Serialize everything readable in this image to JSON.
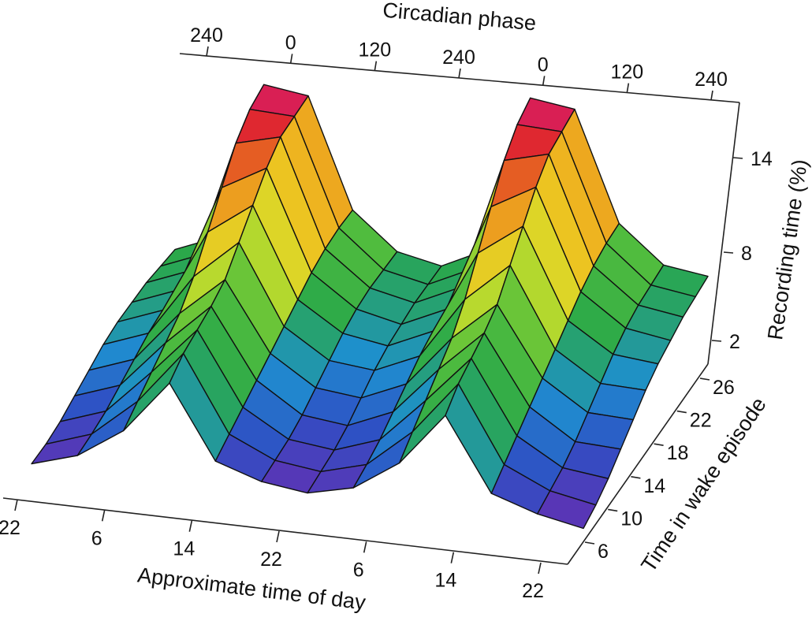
{
  "chart_data": {
    "type": "surface",
    "top_axis": {
      "title": "Circadian phase",
      "ticks": [
        "240",
        "0",
        "120",
        "240",
        "0",
        "120",
        "240"
      ]
    },
    "x_axis": {
      "title": "Approximate time of day",
      "ticks": [
        "22",
        "6",
        "14",
        "22",
        "6",
        "14",
        "22"
      ]
    },
    "y_axis": {
      "title": "Time in wake episode",
      "ticks": [
        "6",
        "10",
        "14",
        "18",
        "22",
        "26"
      ]
    },
    "z_axis": {
      "title": "Recording time (%)",
      "ticks": [
        "2",
        "8",
        "14"
      ],
      "range": [
        0,
        17
      ]
    },
    "colormap": [
      "#6b2bb0",
      "#2f4fc4",
      "#1e8fd0",
      "#2aa84a",
      "#5cc23a",
      "#d4e02a",
      "#f0c020",
      "#e8821e",
      "#e02a2a",
      "#d0108c"
    ],
    "wake_hours": [
      6,
      8,
      10,
      12,
      14,
      16,
      18,
      20,
      22,
      24,
      26
    ],
    "phase_columns": [
      "240",
      "",
      "0",
      "",
      "120",
      "",
      "240",
      "",
      "0",
      "",
      "120",
      "",
      "240"
    ],
    "values": [
      [
        0.6,
        1.5,
        3.5,
        7.0,
        2.2,
        1.2,
        0.8,
        1.5,
        3.5,
        7.0,
        2.2,
        1.2,
        0.6
      ],
      [
        1.0,
        2.0,
        4.5,
        8.0,
        3.0,
        1.6,
        1.2,
        2.0,
        4.5,
        8.0,
        3.0,
        1.6,
        1.0
      ],
      [
        1.6,
        2.6,
        5.5,
        8.6,
        3.8,
        2.0,
        1.6,
        2.6,
        5.5,
        8.6,
        3.8,
        2.0,
        1.6
      ],
      [
        2.4,
        3.4,
        6.5,
        9.2,
        4.6,
        2.6,
        2.2,
        3.4,
        6.5,
        9.2,
        4.6,
        2.6,
        2.4
      ],
      [
        3.2,
        4.2,
        7.5,
        10.0,
        5.4,
        3.4,
        3.0,
        4.2,
        7.5,
        10.0,
        5.4,
        3.4,
        3.2
      ],
      [
        4.0,
        5.0,
        9.0,
        11.5,
        6.2,
        4.2,
        3.8,
        5.0,
        9.0,
        11.5,
        6.2,
        4.2,
        4.0
      ],
      [
        4.6,
        5.6,
        11.0,
        13.0,
        7.0,
        5.0,
        4.4,
        5.6,
        11.0,
        13.0,
        7.0,
        5.0,
        4.6
      ],
      [
        5.0,
        6.0,
        13.0,
        14.5,
        7.8,
        5.6,
        4.8,
        6.0,
        13.0,
        14.5,
        7.8,
        5.6,
        5.0
      ],
      [
        5.4,
        6.4,
        15.0,
        15.6,
        8.4,
        6.0,
        5.2,
        6.4,
        15.0,
        15.6,
        8.4,
        6.0,
        5.4
      ],
      [
        5.6,
        6.6,
        16.3,
        16.0,
        8.8,
        6.2,
        5.4,
        6.6,
        16.3,
        16.0,
        8.8,
        6.2,
        5.6
      ],
      [
        5.8,
        6.8,
        17.0,
        16.4,
        9.0,
        6.4,
        5.6,
        6.8,
        17.0,
        16.4,
        9.0,
        6.4,
        5.8
      ]
    ]
  }
}
